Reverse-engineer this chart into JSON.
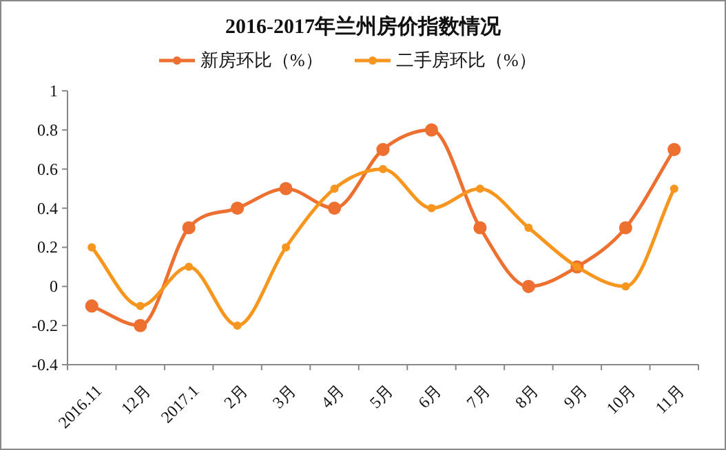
{
  "chart_data": {
    "type": "line",
    "title": "2016-2017年兰州房价指数情况",
    "categories": [
      "2016.11",
      "12月",
      "2017.1",
      "2月",
      "3月",
      "4月",
      "5月",
      "6月",
      "7月",
      "8月",
      "9月",
      "10月",
      "11月"
    ],
    "series": [
      {
        "name": "新房环比（%）",
        "color": "#ed7031",
        "values": [
          -0.1,
          -0.2,
          0.3,
          0.4,
          0.5,
          0.4,
          0.7,
          0.8,
          0.3,
          0.0,
          0.1,
          0.3,
          0.7
        ]
      },
      {
        "name": "二手房环比（%）",
        "color": "#f7961e",
        "values": [
          0.2,
          -0.1,
          0.1,
          -0.2,
          0.2,
          0.5,
          0.6,
          0.4,
          0.5,
          0.3,
          0.1,
          0.0,
          0.5
        ]
      }
    ],
    "ylim": [
      -0.4,
      1
    ],
    "yticks": [
      -0.4,
      -0.2,
      0,
      0.2,
      0.4,
      0.6,
      0.8,
      1
    ],
    "legend": "top",
    "marker": "circle",
    "line_style": "solid",
    "grid": false
  }
}
